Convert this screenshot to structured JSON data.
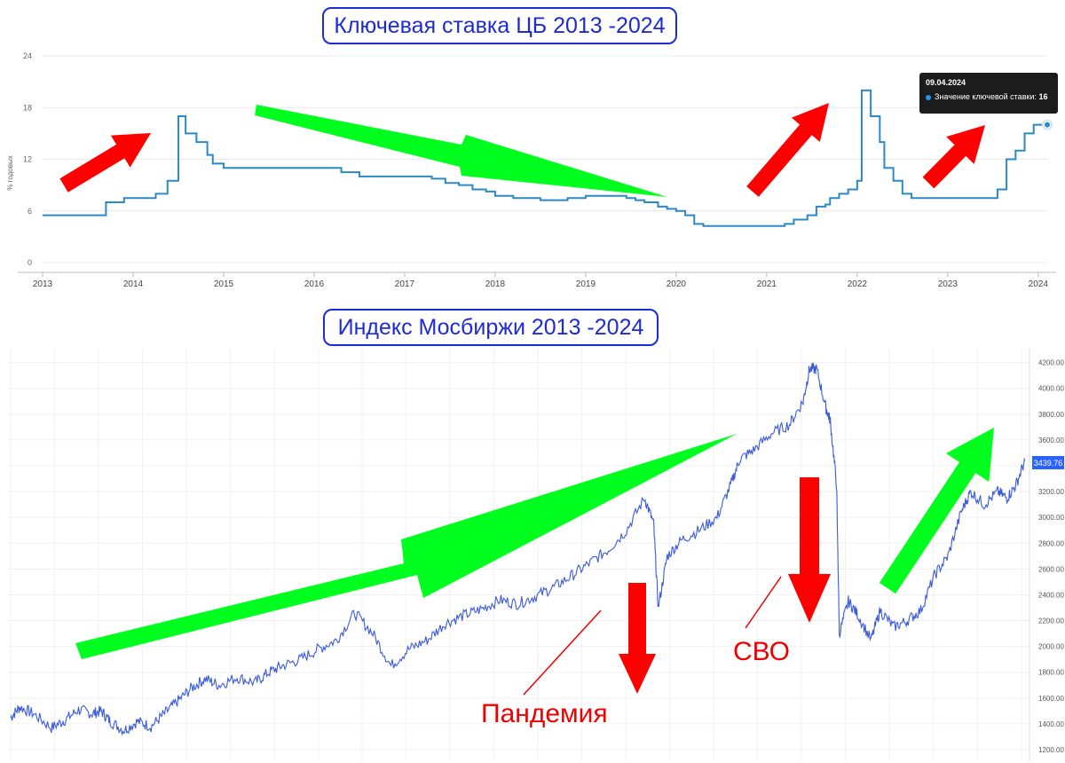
{
  "titles": {
    "rate": "Ключевая ставка ЦБ 2013 -2024",
    "index": "Индекс Мосбиржи 2013 -2024"
  },
  "tooltip": {
    "date": "09.04.2024",
    "label": "Значение ключевой ставки:",
    "value": "16"
  },
  "annotations": {
    "pandemic": "Пандемия",
    "svo": "СВО"
  },
  "price_badge": "3439.76",
  "colors": {
    "rate_line": "#2b8ac6",
    "index_line": "#3b5bdb",
    "title_border": "#1d2bd6",
    "red_arrow": "#ff0000",
    "green_arrow": "#00ff1e",
    "grid": "#e8e8e8"
  },
  "chart_data": [
    {
      "type": "line",
      "title": "Ключевая ставка ЦБ 2013 -2024",
      "ylabel": "% годовых",
      "ylim": [
        0,
        24
      ],
      "xlim": [
        2013.0,
        2024.1
      ],
      "yticks": [
        0,
        6,
        12,
        18,
        24
      ],
      "xticks": [
        "2013",
        "2014",
        "2015",
        "2016",
        "2017",
        "2018",
        "2019",
        "2020",
        "2021",
        "2022",
        "2023",
        "2024"
      ],
      "step": true,
      "series": [
        {
          "x": [
            2013.0,
            2013.55,
            2013.7,
            2013.9,
            2014.0,
            2014.25,
            2014.38,
            2014.4,
            2014.5,
            2014.58,
            2014.7,
            2014.82,
            2014.88,
            2014.95,
            2015.0,
            2015.1,
            2015.25,
            2015.4,
            2015.5,
            2016.0,
            2016.3,
            2016.5,
            2016.75,
            2017.1,
            2017.3,
            2017.45,
            2017.6,
            2017.75,
            2017.9,
            2018.0,
            2018.2,
            2018.5,
            2018.8,
            2019.0,
            2019.3,
            2019.45,
            2019.55,
            2019.65,
            2019.8,
            2019.9,
            2020.0,
            2020.1,
            2020.2,
            2020.3,
            2020.5,
            2020.6,
            2020.9,
            2021.0,
            2021.2,
            2021.3,
            2021.45,
            2021.55,
            2021.65,
            2021.7,
            2021.8,
            2021.9,
            2022.0,
            2022.05,
            2022.15,
            2022.25,
            2022.3,
            2022.4,
            2022.5,
            2022.6,
            2022.75,
            2023.0,
            2023.3,
            2023.55,
            2023.65,
            2023.75,
            2023.85,
            2023.95,
            2024.0,
            2024.1
          ],
          "y": [
            5.5,
            5.5,
            7.0,
            7.5,
            7.5,
            8.0,
            9.5,
            9.5,
            17.0,
            15.0,
            14.0,
            12.5,
            11.5,
            11.5,
            11.0,
            11.0,
            11.0,
            11.0,
            11.0,
            11.0,
            10.5,
            10.0,
            10.0,
            10.0,
            9.75,
            9.25,
            9.0,
            8.5,
            8.25,
            7.75,
            7.5,
            7.25,
            7.5,
            7.75,
            7.75,
            7.5,
            7.25,
            7.0,
            6.5,
            6.25,
            6.0,
            5.5,
            4.5,
            4.25,
            4.25,
            4.25,
            4.25,
            4.25,
            4.5,
            5.0,
            5.5,
            6.5,
            6.75,
            7.5,
            8.0,
            8.5,
            9.5,
            20.0,
            17.0,
            14.0,
            11.0,
            9.5,
            8.0,
            7.5,
            7.5,
            7.5,
            7.5,
            8.5,
            12.0,
            13.0,
            15.0,
            16.0,
            16.0,
            16.0
          ]
        }
      ]
    },
    {
      "type": "line",
      "title": "Индекс Мосбиржи 2013 -2024",
      "ylim": [
        1200,
        4280
      ],
      "xlim": [
        2013.0,
        2024.25
      ],
      "yticks": [
        1200,
        1400,
        1600,
        1800,
        2000,
        2200,
        2400,
        2600,
        2800,
        3000,
        3200,
        3400,
        3600,
        3800,
        4000,
        4200
      ],
      "last_value": 3439.76,
      "series": [
        {
          "x": [
            2013.0,
            2013.1,
            2013.25,
            2013.45,
            2013.6,
            2013.75,
            2013.9,
            2014.0,
            2014.1,
            2014.25,
            2014.4,
            2014.55,
            2014.7,
            2014.85,
            2015.0,
            2015.15,
            2015.3,
            2015.5,
            2015.7,
            2015.85,
            2016.0,
            2016.2,
            2016.4,
            2016.6,
            2016.8,
            2017.0,
            2017.2,
            2017.4,
            2017.6,
            2017.8,
            2018.0,
            2018.2,
            2018.4,
            2018.6,
            2018.8,
            2019.0,
            2019.2,
            2019.4,
            2019.6,
            2019.8,
            2020.0,
            2020.1,
            2020.15,
            2020.25,
            2020.4,
            2020.6,
            2020.8,
            2020.95,
            2021.05,
            2021.2,
            2021.4,
            2021.6,
            2021.75,
            2021.82,
            2021.9,
            2022.0,
            2022.05,
            2022.12,
            2022.15,
            2022.25,
            2022.35,
            2022.5,
            2022.6,
            2022.75,
            2022.9,
            2023.05,
            2023.2,
            2023.35,
            2023.5,
            2023.6,
            2023.75,
            2023.9,
            2024.0,
            2024.1,
            2024.2
          ],
          "y": [
            1450,
            1530,
            1480,
            1370,
            1430,
            1510,
            1480,
            1500,
            1420,
            1350,
            1420,
            1380,
            1480,
            1580,
            1680,
            1750,
            1700,
            1760,
            1720,
            1800,
            1850,
            1900,
            1980,
            2050,
            2260,
            2100,
            1850,
            1980,
            2050,
            2180,
            2240,
            2290,
            2360,
            2330,
            2390,
            2460,
            2550,
            2650,
            2750,
            2900,
            3150,
            2950,
            2300,
            2700,
            2820,
            2900,
            3000,
            3250,
            3450,
            3520,
            3650,
            3720,
            3900,
            4150,
            4150,
            3850,
            3750,
            3250,
            2100,
            2350,
            2250,
            2050,
            2280,
            2150,
            2200,
            2280,
            2550,
            2700,
            3050,
            3200,
            3100,
            3200,
            3150,
            3250,
            3440
          ]
        }
      ]
    }
  ]
}
